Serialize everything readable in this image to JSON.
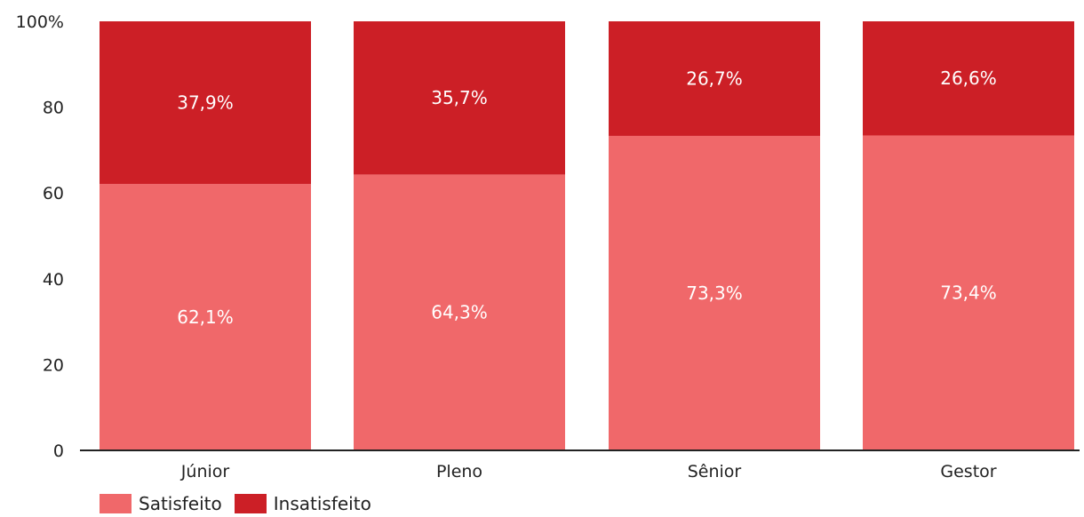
{
  "chart_data": {
    "type": "bar",
    "stacked": true,
    "categories": [
      "Júnior",
      "Pleno",
      "Sênior",
      "Gestor"
    ],
    "series": [
      {
        "name": "Satisfeito",
        "values": [
          62.1,
          64.3,
          73.3,
          73.4
        ],
        "labels": [
          "62,1%",
          "64,3%",
          "73,3%",
          "73,4%"
        ],
        "color": "#f0686a"
      },
      {
        "name": "Insatisfeito",
        "values": [
          37.9,
          35.7,
          26.7,
          26.6
        ],
        "labels": [
          "37,9%",
          "35,7%",
          "26,7%",
          "26,6%"
        ],
        "color": "#cc1f26"
      }
    ],
    "yticks": [
      "0",
      "20",
      "40",
      "60",
      "80",
      "100%"
    ],
    "ylim": [
      0,
      100
    ],
    "grid": false,
    "legend_position": "bottom-left"
  }
}
